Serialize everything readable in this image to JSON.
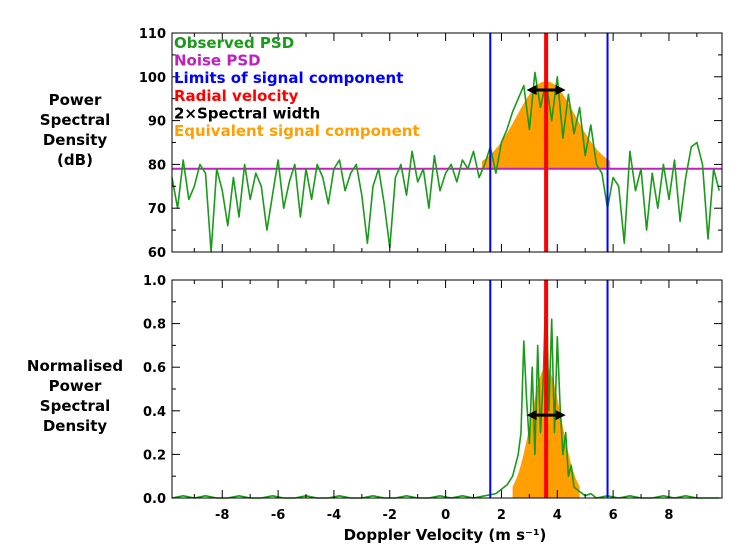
{
  "chart_data": [
    {
      "type": "line",
      "ylabel": "Power\nSpectral\nDensity\n(dB)",
      "ylim": [
        60,
        110
      ],
      "yticks": [
        "60",
        "70",
        "80",
        "90",
        "100",
        "110"
      ],
      "xlim": [
        -9.8,
        9.9
      ],
      "xticks": [
        "-8",
        "-6",
        "-4",
        "-2",
        "0",
        "2",
        "4",
        "6",
        "8"
      ],
      "legend_position": "top-left",
      "legend": [
        {
          "label": "Observed PSD",
          "color": "#1a9a1a"
        },
        {
          "label": "Noise PSD",
          "color": "#c020c0"
        },
        {
          "label": "Limits of signal component",
          "color": "#0000ff"
        },
        {
          "label": "Radial velocity",
          "color": "#ff0000"
        },
        {
          "label": "2×Spectral width",
          "color": "#000000"
        },
        {
          "label": "Equivalent signal component",
          "color": "#ffa000"
        }
      ],
      "noise_level": 79,
      "signal_limits": [
        1.6,
        5.8
      ],
      "radial_velocity": 3.6,
      "spectral_width_range": [
        2.9,
        4.3
      ],
      "spectral_width_y": 97,
      "equivalent_signal": {
        "center": 3.6,
        "peak": 99,
        "half_width": 2.3,
        "base": 79
      },
      "series": [
        {
          "name": "Observed PSD",
          "color": "#1a9a1a",
          "x": [
            -9.8,
            -9.6,
            -9.4,
            -9.2,
            -9.0,
            -8.8,
            -8.6,
            -8.4,
            -8.2,
            -8.0,
            -7.8,
            -7.6,
            -7.4,
            -7.2,
            -7.0,
            -6.8,
            -6.6,
            -6.4,
            -6.2,
            -6.0,
            -5.8,
            -5.6,
            -5.4,
            -5.2,
            -5.0,
            -4.8,
            -4.6,
            -4.4,
            -4.2,
            -4.0,
            -3.8,
            -3.6,
            -3.4,
            -3.2,
            -3.0,
            -2.8,
            -2.6,
            -2.4,
            -2.2,
            -2.0,
            -1.8,
            -1.6,
            -1.4,
            -1.2,
            -1.0,
            -0.8,
            -0.6,
            -0.4,
            -0.2,
            0.0,
            0.2,
            0.4,
            0.6,
            0.8,
            1.0,
            1.2,
            1.4,
            1.6,
            1.8,
            2.0,
            2.2,
            2.4,
            2.6,
            2.8,
            3.0,
            3.2,
            3.4,
            3.6,
            3.8,
            4.0,
            4.2,
            4.4,
            4.6,
            4.8,
            5.0,
            5.2,
            5.4,
            5.6,
            5.8,
            6.0,
            6.2,
            6.4,
            6.6,
            6.8,
            7.0,
            7.2,
            7.4,
            7.6,
            7.8,
            8.0,
            8.2,
            8.4,
            8.6,
            8.8,
            9.0,
            9.2,
            9.4,
            9.6,
            9.8
          ],
          "y": [
            77,
            70,
            81,
            72,
            75,
            80,
            78,
            60,
            79,
            74,
            66,
            77,
            68,
            80,
            72,
            78,
            75,
            65,
            73,
            81,
            70,
            76,
            80,
            68,
            79,
            72,
            80,
            77,
            71,
            79,
            81,
            74,
            78,
            80,
            73,
            62,
            75,
            79,
            71,
            61,
            77,
            80,
            73,
            83,
            76,
            79,
            70,
            82,
            74,
            78,
            80,
            76,
            81,
            79,
            83,
            77,
            80,
            84,
            78,
            85,
            88,
            92,
            95,
            98,
            88,
            101,
            93,
            99,
            90,
            100,
            86,
            96,
            87,
            93,
            82,
            89,
            80,
            78,
            70,
            77,
            75,
            62,
            83,
            74,
            79,
            65,
            78,
            70,
            80,
            72,
            81,
            67,
            77,
            84,
            85,
            80,
            63,
            79,
            74
          ]
        }
      ]
    },
    {
      "type": "line",
      "ylabel": "Normalised\nPower\nSpectral\nDensity",
      "ylim": [
        0.0,
        1.0
      ],
      "yticks": [
        "0.0",
        "0.2",
        "0.4",
        "0.6",
        "0.8",
        "1.0"
      ],
      "xlim": [
        -9.8,
        9.9
      ],
      "xticks": [
        "-8",
        "-6",
        "-4",
        "-2",
        "0",
        "2",
        "4",
        "6",
        "8"
      ],
      "xlabel": "Doppler Velocity (m s⁻¹)",
      "signal_limits": [
        1.6,
        5.8
      ],
      "radial_velocity": 3.6,
      "spectral_width_range": [
        2.9,
        4.3
      ],
      "spectral_width_y": 0.38,
      "equivalent_signal": {
        "center": 3.6,
        "peak": 0.6,
        "half_width": 1.2,
        "base": 0
      },
      "series": [
        {
          "name": "Observed PSD",
          "color": "#1a9a1a",
          "x": [
            -9.8,
            -9.4,
            -9.0,
            -8.6,
            -8.2,
            -7.8,
            -7.4,
            -7.0,
            -6.6,
            -6.2,
            -5.8,
            -5.4,
            -5.0,
            -4.6,
            -4.2,
            -3.8,
            -3.4,
            -3.0,
            -2.6,
            -2.2,
            -1.8,
            -1.4,
            -1.0,
            -0.6,
            -0.2,
            0.2,
            0.6,
            1.0,
            1.4,
            1.8,
            2.0,
            2.2,
            2.4,
            2.6,
            2.7,
            2.8,
            2.9,
            3.0,
            3.1,
            3.2,
            3.3,
            3.4,
            3.5,
            3.6,
            3.7,
            3.8,
            3.9,
            4.0,
            4.1,
            4.2,
            4.3,
            4.4,
            4.5,
            4.6,
            4.8,
            5.0,
            5.2,
            5.4,
            5.8,
            6.2,
            6.6,
            7.0,
            7.4,
            7.8,
            8.2,
            8.6,
            9.0,
            9.4,
            9.8
          ],
          "y": [
            0.0,
            0.01,
            0.0,
            0.01,
            0.0,
            0.0,
            0.01,
            0.0,
            0.0,
            0.01,
            0.0,
            0.0,
            0.01,
            0.0,
            0.0,
            0.01,
            0.0,
            0.0,
            0.01,
            0.0,
            0.0,
            0.01,
            0.0,
            0.0,
            0.01,
            0.0,
            0.01,
            0.0,
            0.01,
            0.02,
            0.04,
            0.06,
            0.1,
            0.2,
            0.3,
            0.72,
            0.45,
            0.25,
            0.6,
            0.2,
            0.7,
            0.3,
            0.55,
            1.0,
            0.4,
            0.82,
            0.3,
            0.74,
            0.42,
            0.2,
            0.3,
            0.1,
            0.15,
            0.05,
            0.03,
            0.01,
            0.02,
            0.0,
            0.01,
            0.0,
            0.01,
            0.0,
            0.0,
            0.01,
            0.0,
            0.01,
            0.0,
            0.0,
            0.0
          ]
        }
      ]
    }
  ]
}
